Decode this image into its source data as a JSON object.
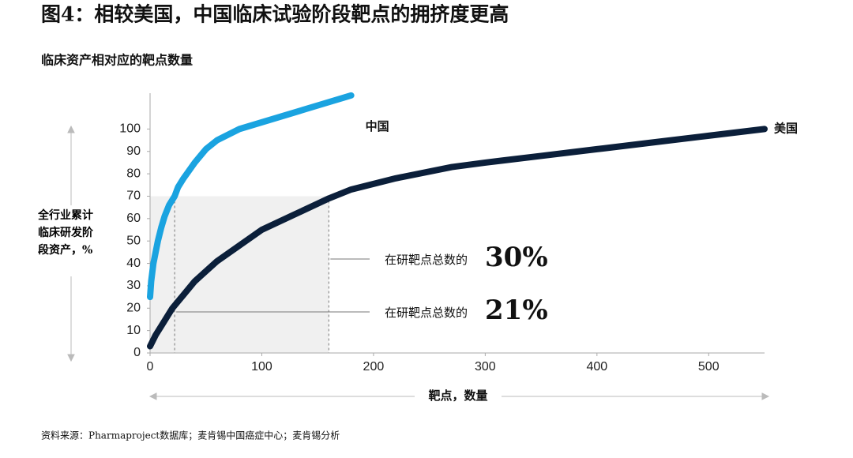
{
  "chart_data": {
    "type": "line",
    "title": "图4：相较美国，中国临床试验阶段靶点的拥挤度更高",
    "subtitle": "临床资产相对应的靶点数量",
    "y_label": "全行业累计临床研发阶段资产，%",
    "x_label": "靶点，数量",
    "source": "资料来源：Pharmaproject数据库；麦肯锡中国癌症中心；麦肯锡分析",
    "xlim": [
      0,
      550
    ],
    "ylim": [
      0,
      116
    ],
    "xticks": [
      0,
      100,
      200,
      300,
      400,
      500
    ],
    "yticks": [
      0,
      10,
      20,
      30,
      40,
      50,
      60,
      70,
      80,
      90,
      100
    ],
    "shade": {
      "xlim": [
        0,
        160
      ],
      "ylim": [
        0,
        70
      ]
    },
    "annotations": [
      {
        "text": "在研靶点总数的",
        "value": 30,
        "label": "30%",
        "x": 160
      },
      {
        "text": "在研靶点总数的",
        "value": 21,
        "label": "21%",
        "x": 22
      }
    ],
    "series": [
      {
        "name": "中国",
        "color": "#1aa3e0",
        "x": [
          0,
          1,
          2,
          3,
          5,
          7,
          10,
          13,
          17,
          22,
          25,
          30,
          40,
          50,
          60,
          80,
          100,
          120,
          140,
          160,
          180
        ],
        "values": [
          25,
          32,
          36,
          40,
          45,
          50,
          56,
          61,
          66,
          70,
          74,
          78,
          85,
          91,
          95,
          100,
          103,
          106,
          109,
          112,
          115
        ]
      },
      {
        "name": "美国",
        "color": "#0b1f3a",
        "x": [
          0,
          5,
          10,
          20,
          30,
          40,
          60,
          80,
          100,
          130,
          160,
          180,
          220,
          270,
          300,
          350,
          400,
          450,
          500,
          550
        ],
        "values": [
          3,
          8,
          12,
          20,
          26,
          32,
          41,
          48,
          55,
          62,
          69,
          73,
          78,
          83,
          85,
          88,
          91,
          94,
          97,
          100
        ]
      }
    ]
  }
}
